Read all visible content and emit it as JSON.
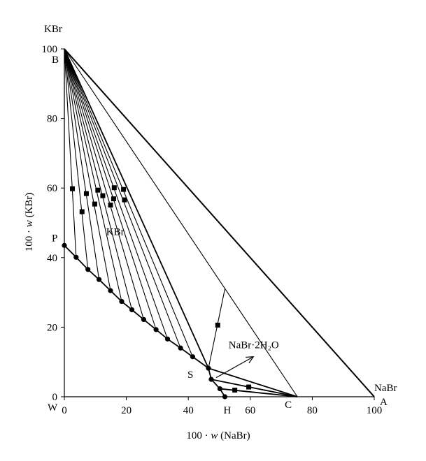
{
  "chart_data": {
    "type": "scatter",
    "title": "",
    "xlabel_prefix": "100 · ",
    "xlabel_var": "w",
    "xlabel_suffix": " (NaBr)",
    "ylabel_prefix": "100 · ",
    "ylabel_var": "w",
    "ylabel_suffix": " (KBr)",
    "x_corner_label": "NaBr",
    "y_corner_label": "KBr",
    "xlim": [
      0,
      100
    ],
    "ylim": [
      0,
      100
    ],
    "x_ticks": [
      0,
      20,
      40,
      60,
      80,
      100
    ],
    "y_ticks": [
      0,
      20,
      40,
      60,
      80,
      100
    ],
    "grid": false,
    "points_labeled": [
      {
        "label": "W",
        "x": 0,
        "y": 0
      },
      {
        "label": "B",
        "x": 0,
        "y": 100
      },
      {
        "label": "P",
        "x": 0,
        "y": 43.5
      },
      {
        "label": "S",
        "x": 46.5,
        "y": 8.2
      },
      {
        "label": "H",
        "x": 51.8,
        "y": 0
      },
      {
        "label": "C",
        "x": 75.2,
        "y": 0
      },
      {
        "label": "A",
        "x": 100,
        "y": 0
      }
    ],
    "region_labels": [
      {
        "text": "KBr",
        "x": 13.5,
        "y": 46.5
      },
      {
        "text": "NaBr·2H₂O",
        "x": 53,
        "y": 14
      }
    ],
    "triangle_outline": [
      [
        0,
        100
      ],
      [
        100,
        0
      ]
    ],
    "thin_tie_lines": [
      [
        [
          0,
          100
        ],
        [
          75.2,
          0
        ]
      ],
      [
        [
          46.5,
          8.2
        ],
        [
          51.8,
          31.0
        ]
      ]
    ],
    "arrow": {
      "from": [
        49,
        5.5
      ],
      "to": [
        61,
        11.5
      ]
    },
    "liquid_curve": [
      [
        0,
        43.5
      ],
      [
        3.8,
        40.1
      ],
      [
        7.6,
        36.6
      ],
      [
        11.2,
        33.7
      ],
      [
        14.9,
        30.5
      ],
      [
        18.5,
        27.4
      ],
      [
        21.8,
        25.0
      ],
      [
        25.6,
        22.2
      ],
      [
        29.6,
        19.3
      ],
      [
        33.3,
        16.6
      ],
      [
        37.5,
        14.0
      ],
      [
        41.4,
        11.5
      ],
      [
        46.5,
        8.2
      ]
    ],
    "liquid_curve_2": [
      [
        46.5,
        8.2
      ],
      [
        47.4,
        5.0
      ],
      [
        50.2,
        2.3
      ],
      [
        51.8,
        0
      ]
    ],
    "solid_points": [
      [
        2.6,
        59.8
      ],
      [
        7.1,
        58.4
      ],
      [
        10.8,
        59.4
      ],
      [
        12.4,
        57.8
      ],
      [
        16.1,
        60.1
      ],
      [
        19.1,
        59.6
      ],
      [
        5.7,
        53.2
      ],
      [
        9.8,
        55.4
      ],
      [
        14.9,
        55.1
      ],
      [
        15.9,
        56.9
      ],
      [
        19.4,
        56.6
      ],
      [
        49.5,
        20.6
      ],
      [
        55.0,
        1.9
      ],
      [
        59.5,
        2.8
      ]
    ],
    "boundary_lines": [
      [
        [
          0,
          100
        ],
        [
          46.5,
          8.2
        ]
      ],
      [
        [
          46.5,
          8.2
        ],
        [
          75.2,
          0
        ]
      ],
      [
        [
          47.4,
          5.0
        ],
        [
          75.2,
          0
        ]
      ],
      [
        [
          50.2,
          2.3
        ],
        [
          75.2,
          0
        ]
      ]
    ]
  }
}
